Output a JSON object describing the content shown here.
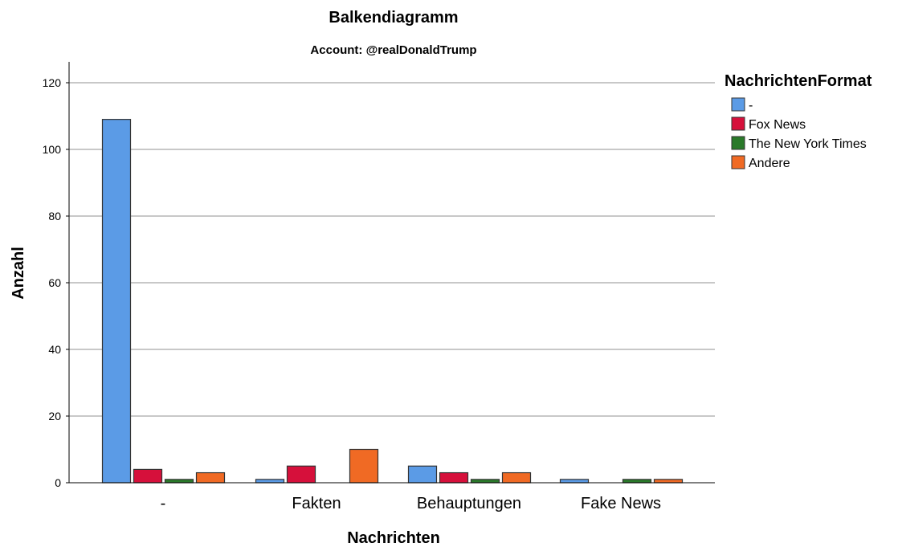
{
  "chart_data": {
    "type": "bar",
    "title": "Balkendiagramm",
    "subtitle": "Account: @realDonaldTrump",
    "xlabel": "Nachrichten",
    "ylabel": "Anzahl",
    "categories": [
      "-",
      "Fakten",
      "Behauptungen",
      "Fake News"
    ],
    "ylim": [
      0,
      120
    ],
    "yticks": [
      0,
      20,
      40,
      60,
      80,
      100,
      120
    ],
    "grid": true,
    "legend": {
      "title": "NachrichtenFormat",
      "position": "right"
    },
    "series": [
      {
        "name": "-",
        "color": "#5b9be6",
        "values": [
          109,
          1,
          5,
          1
        ]
      },
      {
        "name": "Fox News",
        "color": "#d6103b",
        "values": [
          4,
          5,
          3,
          0
        ]
      },
      {
        "name": "The New York Times",
        "color": "#2a7a2a",
        "values": [
          1,
          0,
          1,
          1
        ]
      },
      {
        "name": "Andere",
        "color": "#f06a24",
        "values": [
          3,
          10,
          3,
          1
        ]
      }
    ]
  }
}
